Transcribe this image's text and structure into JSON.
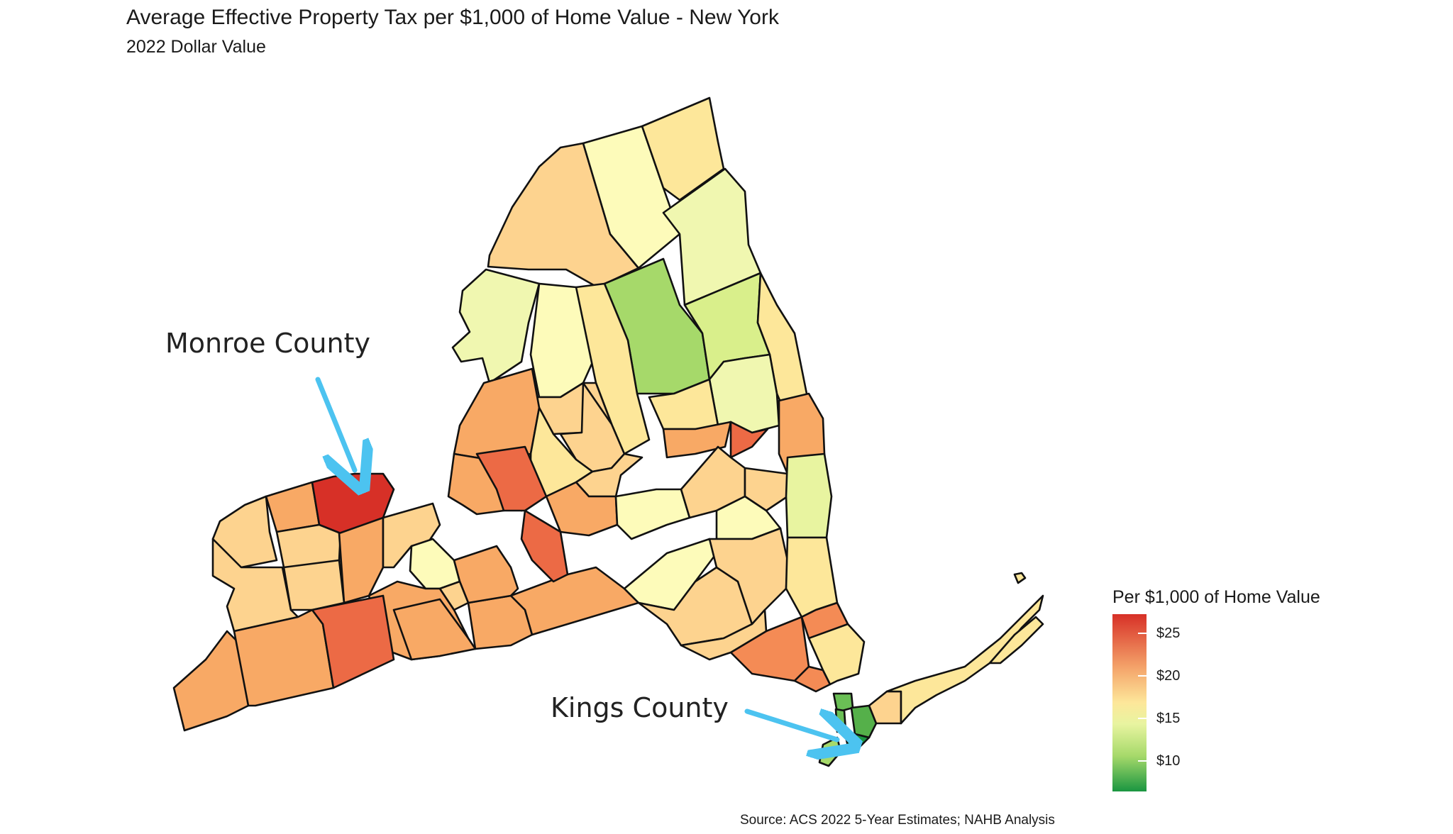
{
  "title": "Average Effective Property Tax per $1,000 of Home Value - New York",
  "subtitle": "2022 Dollar Value",
  "annotations": {
    "monroe": "Monroe County",
    "kings": "Kings County"
  },
  "legend": {
    "title": "Per $1,000 of Home Value",
    "ticks": [
      "$25",
      "$20",
      "$15",
      "$10"
    ],
    "colors": [
      "#d73027",
      "#f4a36a",
      "#fde79a",
      "#e8f4a0",
      "#a6d96a",
      "#1a9641"
    ]
  },
  "source": "Source: ACS 2022 5-Year Estimates; NAHB Analysis",
  "colors": {
    "annotation_arrow": "#4cc3f0"
  }
}
